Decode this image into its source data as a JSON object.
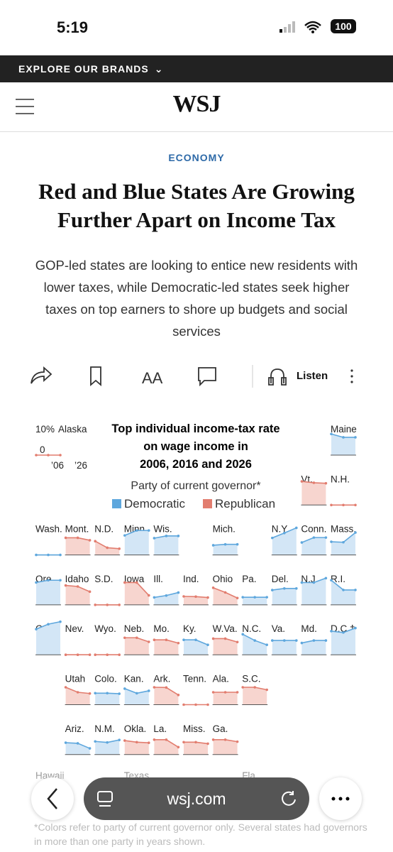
{
  "status_bar": {
    "time": "5:19",
    "battery": "100"
  },
  "nav": {
    "brands": "EXPLORE OUR BRANDS",
    "logo": "WSJ"
  },
  "article": {
    "section": "ECONOMY",
    "headline": "Red and Blue States Are Growing Further Apart on Income Tax",
    "dek": "GOP-led states are looking to entice new residents with lower taxes, while Democratic-led states seek higher taxes on top earners to shore up budgets and social services",
    "listen": "Listen"
  },
  "map": {
    "title": "Top individual income-tax rate on wage income in 2006, 2016 and 2026",
    "legend_title": "Party of current governor*",
    "legend": [
      {
        "label": "Democratic",
        "color": "#5ea7dd",
        "fill": "#d3e6f6"
      },
      {
        "label": "Republican",
        "color": "#e27d6f",
        "fill": "#f7d5cf"
      }
    ],
    "key": {
      "top": "10%",
      "zero": "0",
      "start": "’06",
      "end": "’26"
    },
    "states": [
      {
        "name": "Alaska",
        "party": "Republican",
        "values": [
          0,
          0,
          0
        ]
      },
      {
        "name": "Maine",
        "party": "Democratic",
        "values": [
          8.5,
          7.15,
          7.15
        ]
      },
      {
        "name": "Vt.",
        "party": "Republican",
        "values": [
          9.5,
          8.95,
          8.75
        ]
      },
      {
        "name": "N.H.",
        "party": "Republican",
        "values": [
          0,
          0,
          0
        ]
      },
      {
        "name": "Wash.",
        "party": "Democratic",
        "values": [
          0,
          0,
          0
        ]
      },
      {
        "name": "Mont.",
        "party": "Republican",
        "values": [
          6.9,
          6.9,
          5.9
        ]
      },
      {
        "name": "N.D.",
        "party": "Republican",
        "values": [
          5.54,
          2.9,
          2.5
        ]
      },
      {
        "name": "Minn.",
        "party": "Democratic",
        "values": [
          7.85,
          9.85,
          9.85
        ]
      },
      {
        "name": "Wis.",
        "party": "Democratic",
        "values": [
          6.75,
          7.65,
          7.65
        ]
      },
      {
        "name": "Mich.",
        "party": "Democratic",
        "values": [
          3.9,
          4.25,
          4.25
        ]
      },
      {
        "name": "N.Y.",
        "party": "Democratic",
        "values": [
          6.85,
          8.82,
          10.9
        ]
      },
      {
        "name": "Conn.",
        "party": "Democratic",
        "values": [
          5,
          6.99,
          6.99
        ]
      },
      {
        "name": "Mass.",
        "party": "Democratic",
        "values": [
          5.3,
          5.1,
          9
        ]
      },
      {
        "name": "Ore.",
        "party": "Democratic",
        "values": [
          9,
          9.9,
          9.9
        ]
      },
      {
        "name": "Idaho",
        "party": "Republican",
        "values": [
          7.8,
          7.4,
          5.3
        ]
      },
      {
        "name": "S.D.",
        "party": "Republican",
        "values": [
          0,
          0,
          0
        ]
      },
      {
        "name": "Iowa",
        "party": "Republican",
        "values": [
          8.98,
          8.98,
          3.8
        ]
      },
      {
        "name": "Ill.",
        "party": "Democratic",
        "values": [
          3,
          3.75,
          4.95
        ]
      },
      {
        "name": "Ind.",
        "party": "Republican",
        "values": [
          3.4,
          3.3,
          2.95
        ]
      },
      {
        "name": "Ohio",
        "party": "Republican",
        "values": [
          6.87,
          5,
          2.75
        ]
      },
      {
        "name": "Pa.",
        "party": "Democratic",
        "values": [
          3.07,
          3.07,
          3.07
        ]
      },
      {
        "name": "Del.",
        "party": "Democratic",
        "values": [
          5.95,
          6.6,
          6.6
        ]
      },
      {
        "name": "N.J.",
        "party": "Democratic",
        "values": [
          8.97,
          8.97,
          10.75
        ]
      },
      {
        "name": "R.I.",
        "party": "Democratic",
        "values": [
          9.9,
          5.99,
          5.99
        ]
      },
      {
        "name": "Calif.",
        "party": "Democratic",
        "values": [
          10.3,
          12.3,
          13.3
        ]
      },
      {
        "name": "Nev.",
        "party": "Republican",
        "values": [
          0,
          0,
          0
        ]
      },
      {
        "name": "Wyo.",
        "party": "Republican",
        "values": [
          0,
          0,
          0
        ]
      },
      {
        "name": "Neb.",
        "party": "Republican",
        "values": [
          6.84,
          6.84,
          5.2
        ]
      },
      {
        "name": "Mo.",
        "party": "Republican",
        "values": [
          6,
          6,
          4.7
        ]
      },
      {
        "name": "Ky.",
        "party": "Democratic",
        "values": [
          6,
          6,
          4
        ]
      },
      {
        "name": "W.Va.",
        "party": "Republican",
        "values": [
          6.5,
          6.5,
          5.12
        ]
      },
      {
        "name": "N.C.",
        "party": "Democratic",
        "values": [
          8.25,
          5.75,
          3.99
        ]
      },
      {
        "name": "Va.",
        "party": "Democratic",
        "values": [
          5.75,
          5.75,
          5.75
        ]
      },
      {
        "name": "Md.",
        "party": "Democratic",
        "values": [
          4.75,
          5.75,
          5.75
        ]
      },
      {
        "name": "D.C.†",
        "party": "Democratic",
        "values": [
          9.5,
          8.95,
          10.75
        ]
      },
      {
        "name": "Utah",
        "party": "Republican",
        "values": [
          7,
          5,
          4.5
        ]
      },
      {
        "name": "Colo.",
        "party": "Democratic",
        "values": [
          4.63,
          4.63,
          4.4
        ]
      },
      {
        "name": "Kan.",
        "party": "Democratic",
        "values": [
          6.45,
          4.6,
          5.58
        ]
      },
      {
        "name": "Ark.",
        "party": "Republican",
        "values": [
          7,
          6.9,
          3.9
        ]
      },
      {
        "name": "Tenn.",
        "party": "Republican",
        "values": [
          0,
          0,
          0
        ]
      },
      {
        "name": "Ala.",
        "party": "Republican",
        "values": [
          5,
          5,
          5
        ]
      },
      {
        "name": "S.C.",
        "party": "Republican",
        "values": [
          7,
          7,
          6
        ]
      },
      {
        "name": "Ariz.",
        "party": "Democratic",
        "values": [
          4.79,
          4.54,
          2.5
        ]
      },
      {
        "name": "N.M.",
        "party": "Democratic",
        "values": [
          5.3,
          4.9,
          5.9
        ]
      },
      {
        "name": "Okla.",
        "party": "Republican",
        "values": [
          5.65,
          5,
          4.75
        ]
      },
      {
        "name": "La.",
        "party": "Republican",
        "values": [
          6,
          6,
          3
        ]
      },
      {
        "name": "Miss.",
        "party": "Republican",
        "values": [
          5,
          5,
          4.4
        ]
      },
      {
        "name": "Ga.",
        "party": "Republican",
        "values": [
          6,
          6,
          5.19
        ]
      }
    ],
    "hidden_labels": [
      "Hawaii",
      "Texas",
      "Fla."
    ],
    "footnote": "*Colors refer to party of current governor only. Several states had governors in more than one party in years shown."
  },
  "browser": {
    "url": "wsj.com"
  }
}
